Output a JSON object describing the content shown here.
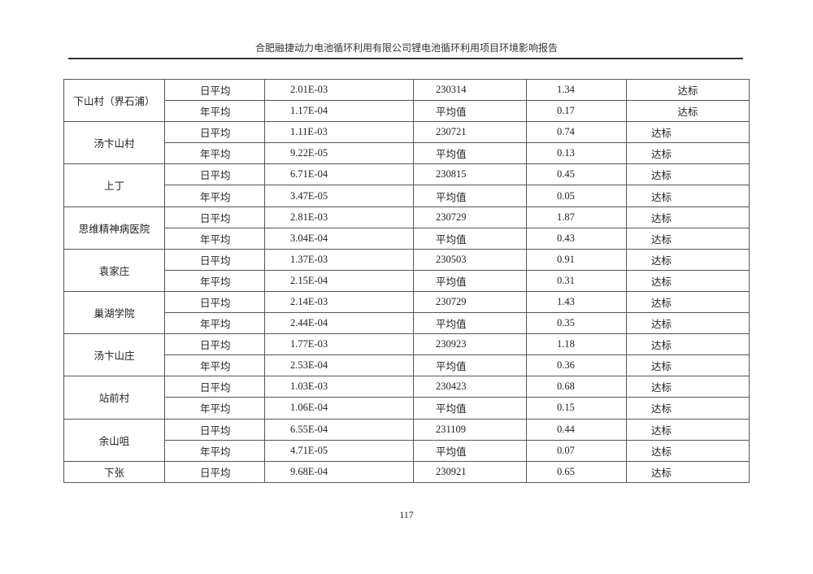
{
  "header": {
    "title": "合肥融捷动力电池循环利用有限公司锂电池循环利用项目环境影响报告"
  },
  "table": {
    "groups": [
      {
        "site": "下山村（界石浦）",
        "rows": [
          [
            "日平均",
            "2.01E-03",
            "230314",
            "1.34",
            "达标"
          ],
          [
            "年平均",
            "1.17E-04",
            "平均值",
            "0.17",
            "达标"
          ]
        ]
      },
      {
        "site": "汤卞山村",
        "rows": [
          [
            "日平均",
            "1.11E-03",
            "230721",
            "0.74",
            "达标"
          ],
          [
            "年平均",
            "9.22E-05",
            "平均值",
            "0.13",
            "达标"
          ]
        ]
      },
      {
        "site": "上丁",
        "rows": [
          [
            "日平均",
            "6.71E-04",
            "230815",
            "0.45",
            "达标"
          ],
          [
            "年平均",
            "3.47E-05",
            "平均值",
            "0.05",
            "达标"
          ]
        ]
      },
      {
        "site": "思维精神病医院",
        "rows": [
          [
            "日平均",
            "2.81E-03",
            "230729",
            "1.87",
            "达标"
          ],
          [
            "年平均",
            "3.04E-04",
            "平均值",
            "0.43",
            "达标"
          ]
        ]
      },
      {
        "site": "袁家庄",
        "rows": [
          [
            "日平均",
            "1.37E-03",
            "230503",
            "0.91",
            "达标"
          ],
          [
            "年平均",
            "2.15E-04",
            "平均值",
            "0.31",
            "达标"
          ]
        ]
      },
      {
        "site": "巢湖学院",
        "rows": [
          [
            "日平均",
            "2.14E-03",
            "230729",
            "1.43",
            "达标"
          ],
          [
            "年平均",
            "2.44E-04",
            "平均值",
            "0.35",
            "达标"
          ]
        ]
      },
      {
        "site": "汤卞山庄",
        "rows": [
          [
            "日平均",
            "1.77E-03",
            "230923",
            "1.18",
            "达标"
          ],
          [
            "年平均",
            "2.53E-04",
            "平均值",
            "0.36",
            "达标"
          ]
        ]
      },
      {
        "site": "站前村",
        "rows": [
          [
            "日平均",
            "1.03E-03",
            "230423",
            "0.68",
            "达标"
          ],
          [
            "年平均",
            "1.06E-04",
            "平均值",
            "0.15",
            "达标"
          ]
        ]
      },
      {
        "site": "余山咀",
        "rows": [
          [
            "日平均",
            "6.55E-04",
            "231109",
            "0.44",
            "达标"
          ],
          [
            "年平均",
            "4.71E-05",
            "平均值",
            "0.07",
            "达标"
          ]
        ]
      },
      {
        "site": "下张",
        "rows": [
          [
            "日平均",
            "9.68E-04",
            "230921",
            "0.65",
            "达标"
          ]
        ]
      }
    ]
  },
  "footer": {
    "page_number": "117"
  }
}
